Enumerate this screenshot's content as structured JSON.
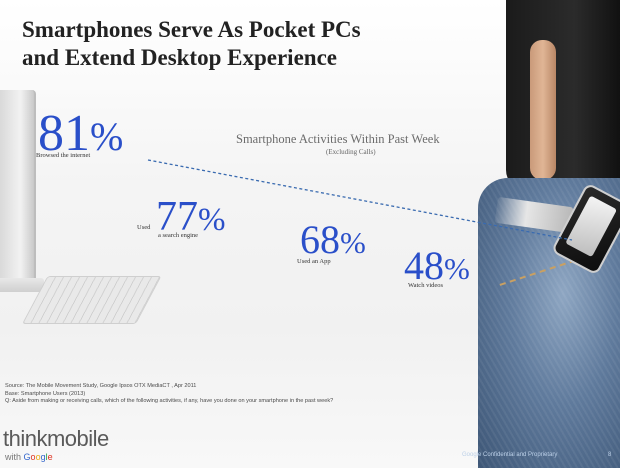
{
  "title": {
    "line1": "Smartphones Serve As Pocket PCs",
    "line2": "and Extend Desktop Experience"
  },
  "chart_data": {
    "type": "scatter",
    "title": "Smartphone Activities Within Past Week",
    "subtitle": "(Excluding Calls)",
    "categories": [
      "Browsed the internet",
      "Used a search engine",
      "Used an App",
      "Watch videos"
    ],
    "values": [
      81,
      77,
      68,
      48
    ],
    "unit": "%",
    "value_color": "#2a4fc9",
    "trend_line_color": "#3a6bb0",
    "items": [
      {
        "number": "81",
        "pct": "%",
        "label": "Browsed the internet"
      },
      {
        "number": "77",
        "pct": "%",
        "label_top": "Used",
        "label_bottom": "a search engine"
      },
      {
        "number": "68",
        "pct": "%",
        "label": "Used an App"
      },
      {
        "number": "48",
        "pct": "%",
        "label": "Watch videos"
      }
    ]
  },
  "source": {
    "line1": "Source: The Mobile Movement Study, Google Ipsos OTX MediaCT , Apr 2011",
    "line2": "Base:    Smartphone Users (2013)",
    "line3": "Q:  Aside from making or receiving calls, which of the following activities, if any, have you done on your smartphone in the past week?"
  },
  "logo": {
    "think": "think",
    "mobile": "mobile",
    "with": "with",
    "google": [
      "G",
      "o",
      "o",
      "g",
      "l",
      "e"
    ]
  },
  "footer": {
    "confidential": "Google Confidential and Proprietary",
    "page": "8"
  },
  "icons": [
    "desktop-computer-icon",
    "keyboard-icon",
    "smartphone-icon"
  ]
}
